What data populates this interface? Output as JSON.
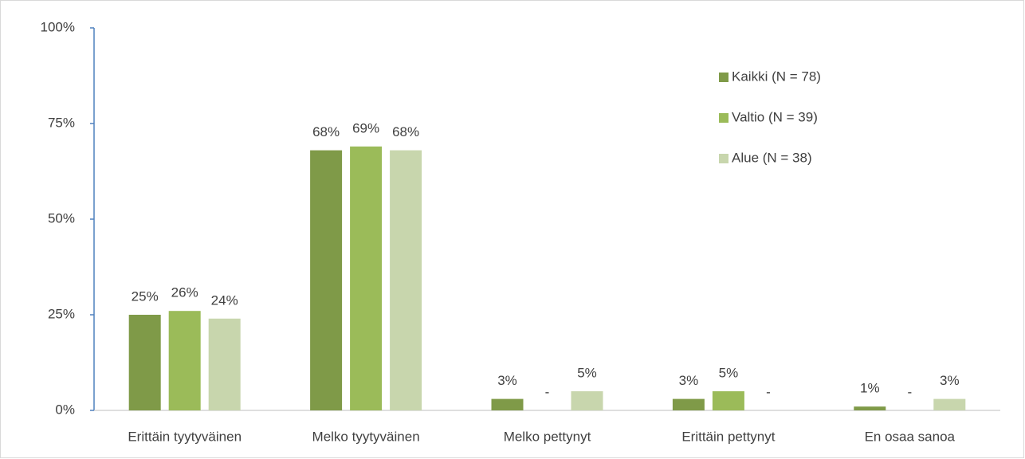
{
  "chart_data": {
    "type": "bar",
    "categories": [
      "Erittäin tyytyväinen",
      "Melko tyytyväinen",
      "Melko pettynyt",
      "Erittäin pettynyt",
      "En osaa sanoa"
    ],
    "series": [
      {
        "name": "Kaikki (N = 78)",
        "color": "#7f9a48",
        "values": [
          25,
          68,
          3,
          3,
          1
        ],
        "value_labels": [
          "25%",
          "68%",
          "3%",
          "3%",
          "1%"
        ]
      },
      {
        "name": "Valtio (N = 39)",
        "color": "#9bbb59",
        "values": [
          26,
          69,
          0,
          5,
          0
        ],
        "value_labels": [
          "26%",
          "69%",
          "-",
          "5%",
          "-"
        ]
      },
      {
        "name": "Alue (N = 38)",
        "color": "#c8d6ad",
        "values": [
          24,
          68,
          5,
          0,
          3
        ],
        "value_labels": [
          "24%",
          "68%",
          "5%",
          "-",
          "3%"
        ]
      }
    ],
    "ylim": [
      0,
      100
    ],
    "yticks": [
      {
        "value": 0,
        "label": "0%"
      },
      {
        "value": 25,
        "label": "25%"
      },
      {
        "value": 50,
        "label": "50%"
      },
      {
        "value": 75,
        "label": "75%"
      },
      {
        "value": 100,
        "label": "100%"
      }
    ],
    "legend": "upper right"
  }
}
